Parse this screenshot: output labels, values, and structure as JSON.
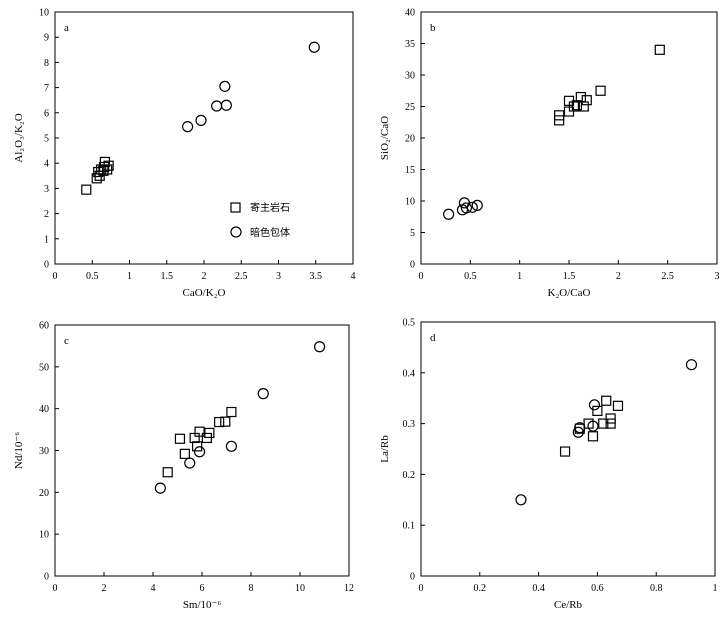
{
  "legend": {
    "host": "寄主岩石",
    "enclave": "暗色包体"
  },
  "chart_data": [
    {
      "id": "a",
      "type": "scatter",
      "panel_label": "a",
      "xlabel": "CaO/K₂O",
      "ylabel": "Al₂O₃/K₂O",
      "xlim": [
        0,
        4
      ],
      "ylim": [
        0,
        10
      ],
      "xticks": [
        0,
        0.5,
        1,
        1.5,
        2,
        2.5,
        3,
        3.5,
        4
      ],
      "yticks": [
        0,
        1,
        2,
        3,
        4,
        5,
        6,
        7,
        8,
        9,
        10
      ],
      "xtick_labels": [
        "0",
        "0.5",
        "1",
        "1.5",
        "2",
        "2.5",
        "3",
        "3.5",
        "4"
      ],
      "ytick_labels": [
        "0",
        "1",
        "2",
        "3",
        "4",
        "5",
        "6",
        "7",
        "8",
        "9",
        "10"
      ],
      "legend_position": "bottom-right",
      "series": [
        {
          "name": "寄主岩石",
          "marker": "square",
          "points": [
            [
              0.42,
              2.95
            ],
            [
              0.56,
              3.4
            ],
            [
              0.6,
              3.5
            ],
            [
              0.58,
              3.65
            ],
            [
              0.62,
              3.75
            ],
            [
              0.65,
              3.7
            ],
            [
              0.66,
              3.85
            ],
            [
              0.67,
              4.05
            ],
            [
              0.72,
              3.9
            ],
            [
              0.7,
              3.75
            ]
          ]
        },
        {
          "name": "暗色包体",
          "marker": "circle",
          "points": [
            [
              1.78,
              5.45
            ],
            [
              1.96,
              5.7
            ],
            [
              2.17,
              6.27
            ],
            [
              2.3,
              6.3
            ],
            [
              2.28,
              7.05
            ],
            [
              3.48,
              8.6
            ]
          ]
        }
      ]
    },
    {
      "id": "b",
      "type": "scatter",
      "panel_label": "b",
      "xlabel": "K₂O/CaO",
      "ylabel": "SiO₂/CaO",
      "xlim": [
        0,
        3
      ],
      "ylim": [
        0,
        40
      ],
      "xticks": [
        0,
        0.5,
        1,
        1.5,
        2,
        2.5,
        3
      ],
      "yticks": [
        0,
        5,
        10,
        15,
        20,
        25,
        30,
        35,
        40
      ],
      "xtick_labels": [
        "0",
        "0.5",
        "1",
        "1.5",
        "2",
        "2.5",
        "3"
      ],
      "ytick_labels": [
        "0",
        "5",
        "10",
        "15",
        "20",
        "25",
        "30",
        "35",
        "40"
      ],
      "series": [
        {
          "name": "寄主岩石",
          "marker": "square",
          "points": [
            [
              1.4,
              22.8
            ],
            [
              1.4,
              23.6
            ],
            [
              1.5,
              24.2
            ],
            [
              1.5,
              25.9
            ],
            [
              1.55,
              25.0
            ],
            [
              1.58,
              25.2
            ],
            [
              1.62,
              26.5
            ],
            [
              1.65,
              25.0
            ],
            [
              1.68,
              26.0
            ],
            [
              1.82,
              27.5
            ],
            [
              2.42,
              34.0
            ]
          ]
        },
        {
          "name": "暗色包体",
          "marker": "circle",
          "points": [
            [
              0.28,
              7.9
            ],
            [
              0.42,
              8.6
            ],
            [
              0.44,
              9.7
            ],
            [
              0.46,
              8.9
            ],
            [
              0.52,
              9.0
            ],
            [
              0.57,
              9.3
            ]
          ]
        }
      ]
    },
    {
      "id": "c",
      "type": "scatter",
      "panel_label": "c",
      "xlabel": "Sm/10⁻⁶",
      "ylabel": "Nd/10⁻⁶",
      "xlim": [
        0,
        12
      ],
      "ylim": [
        0,
        60
      ],
      "xticks": [
        0,
        2,
        4,
        6,
        8,
        10,
        12
      ],
      "yticks": [
        0,
        10,
        20,
        30,
        40,
        50,
        60
      ],
      "xtick_labels": [
        "0",
        "2",
        "4",
        "6",
        "8",
        "10",
        "12"
      ],
      "ytick_labels": [
        "0",
        "10",
        "20",
        "30",
        "40",
        "50",
        "60"
      ],
      "series": [
        {
          "name": "寄主岩石",
          "marker": "square",
          "points": [
            [
              4.6,
              24.8
            ],
            [
              5.1,
              32.8
            ],
            [
              5.3,
              29.2
            ],
            [
              5.7,
              33.0
            ],
            [
              5.8,
              31.0
            ],
            [
              5.9,
              34.5
            ],
            [
              6.2,
              33.0
            ],
            [
              6.3,
              34.2
            ],
            [
              6.7,
              36.8
            ],
            [
              6.95,
              36.9
            ],
            [
              7.2,
              39.2
            ]
          ]
        },
        {
          "name": "暗色包体",
          "marker": "circle",
          "points": [
            [
              4.3,
              21.0
            ],
            [
              5.5,
              27.0
            ],
            [
              5.9,
              29.7
            ],
            [
              7.2,
              31.0
            ],
            [
              8.5,
              43.6
            ],
            [
              10.8,
              54.8
            ]
          ]
        }
      ]
    },
    {
      "id": "d",
      "type": "scatter",
      "panel_label": "d",
      "xlabel": "Ce/Rb",
      "ylabel": "La/Rb",
      "xlim": [
        0,
        1
      ],
      "ylim": [
        0,
        0.5
      ],
      "xticks": [
        0,
        0.2,
        0.4,
        0.6,
        0.8,
        1
      ],
      "yticks": [
        0,
        0.1,
        0.2,
        0.3,
        0.4,
        0.5
      ],
      "xtick_labels": [
        "0",
        "0.2",
        "0.4",
        "0.6",
        "0.8",
        "1"
      ],
      "ytick_labels": [
        "0",
        "0.1",
        "0.2",
        "0.3",
        "0.4",
        "0.5"
      ],
      "series": [
        {
          "name": "寄主岩石",
          "marker": "square",
          "points": [
            [
              0.49,
              0.245
            ],
            [
              0.54,
              0.29
            ],
            [
              0.57,
              0.3
            ],
            [
              0.585,
              0.275
            ],
            [
              0.6,
              0.325
            ],
            [
              0.62,
              0.3
            ],
            [
              0.63,
              0.345
            ],
            [
              0.645,
              0.31
            ],
            [
              0.645,
              0.3
            ],
            [
              0.67,
              0.335
            ]
          ]
        },
        {
          "name": "暗色包体",
          "marker": "circle",
          "points": [
            [
              0.34,
              0.15
            ],
            [
              0.535,
              0.283
            ],
            [
              0.54,
              0.292
            ],
            [
              0.585,
              0.295
            ],
            [
              0.59,
              0.337
            ],
            [
              0.92,
              0.416
            ]
          ]
        }
      ]
    }
  ]
}
